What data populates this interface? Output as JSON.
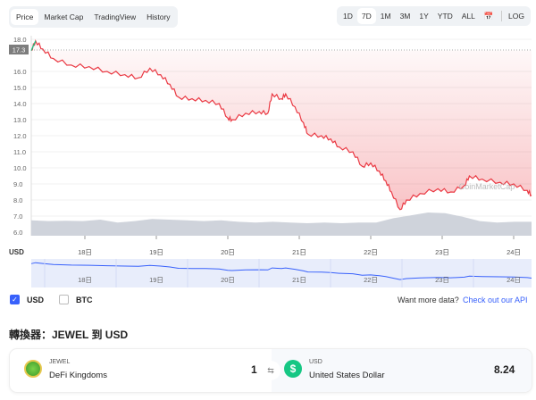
{
  "tabs": [
    "Price",
    "Market Cap",
    "TradingView",
    "History"
  ],
  "active_tab": "Price",
  "ranges": [
    "1D",
    "7D",
    "1M",
    "3M",
    "1Y",
    "YTD",
    "ALL"
  ],
  "active_range": "7D",
  "log_label": "LOG",
  "current_price_badge": "17.3",
  "watermark": "CoinMarketCap",
  "axis_unit": "USD",
  "chart_data": {
    "type": "line",
    "ylim": [
      6,
      18
    ],
    "yticks": [
      "18.0",
      "16.0",
      "15.0",
      "14.0",
      "13.0",
      "12.0",
      "11.0",
      "10.0",
      "9.0",
      "8.0",
      "7.0",
      "6.0"
    ],
    "xticks": [
      "18日",
      "19日",
      "20日",
      "21日",
      "22日",
      "23日",
      "24日"
    ],
    "x_days": [
      17.25,
      24.25
    ],
    "series": [
      {
        "name": "Price",
        "color": "#ea3943",
        "points": [
          [
            17.25,
            17.3
          ],
          [
            17.31,
            17.9
          ],
          [
            17.41,
            17.4
          ],
          [
            17.56,
            16.8
          ],
          [
            17.81,
            16.4
          ],
          [
            18.06,
            16.3
          ],
          [
            18.31,
            16.0
          ],
          [
            18.56,
            15.8
          ],
          [
            18.75,
            15.6
          ],
          [
            18.91,
            16.2
          ],
          [
            19.06,
            15.8
          ],
          [
            19.19,
            15.2
          ],
          [
            19.31,
            14.4
          ],
          [
            19.5,
            14.3
          ],
          [
            19.69,
            14.2
          ],
          [
            19.88,
            14.0
          ],
          [
            20.0,
            13.1
          ],
          [
            20.06,
            13.0
          ],
          [
            20.25,
            13.4
          ],
          [
            20.44,
            13.5
          ],
          [
            20.56,
            13.4
          ],
          [
            20.62,
            14.6
          ],
          [
            20.75,
            14.3
          ],
          [
            20.81,
            14.6
          ],
          [
            20.94,
            13.8
          ],
          [
            21.06,
            12.8
          ],
          [
            21.12,
            12.1
          ],
          [
            21.31,
            12.0
          ],
          [
            21.44,
            11.8
          ],
          [
            21.56,
            11.3
          ],
          [
            21.75,
            11.0
          ],
          [
            21.88,
            10.1
          ],
          [
            22.0,
            10.3
          ],
          [
            22.12,
            9.8
          ],
          [
            22.21,
            9.2
          ],
          [
            22.29,
            8.5
          ],
          [
            22.41,
            7.4
          ],
          [
            22.5,
            8.0
          ],
          [
            22.69,
            8.4
          ],
          [
            22.94,
            8.7
          ],
          [
            23.12,
            8.5
          ],
          [
            23.31,
            8.9
          ],
          [
            23.38,
            9.5
          ],
          [
            23.56,
            9.3
          ],
          [
            23.81,
            9.1
          ],
          [
            24.0,
            9.0
          ],
          [
            24.19,
            8.6
          ],
          [
            24.25,
            8.3
          ]
        ]
      }
    ],
    "volume_relative": [
      0.45,
      0.4,
      0.42,
      0.4,
      0.5,
      0.3,
      0.4,
      0.55,
      0.5,
      0.45,
      0.4,
      0.45,
      0.35,
      0.3,
      0.35,
      0.3,
      0.25,
      0.3,
      0.25,
      0.3,
      0.3,
      0.6,
      0.8,
      1.0,
      0.95,
      0.7,
      0.4,
      0.3,
      0.35,
      0.35
    ]
  },
  "legend": {
    "usd": "USD",
    "btc": "BTC",
    "usd_checked": true,
    "btc_checked": false
  },
  "api_prompt": "Want more data?",
  "api_link": "Check out our API",
  "converter": {
    "title": "轉換器：JEWEL 到 USD",
    "from_symbol": "JEWEL",
    "from_name": "DeFi Kingdoms",
    "from_amount": "1",
    "to_symbol": "USD",
    "to_name": "United States Dollar",
    "to_amount": "8.24"
  },
  "colors": {
    "down": "#ea3943",
    "up": "#16c784",
    "accent": "#3861fb"
  }
}
